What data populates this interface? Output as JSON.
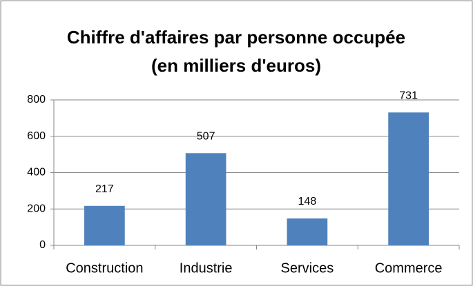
{
  "chart_data": {
    "type": "bar",
    "title": [
      "Chiffre d'affaires par personne occupée",
      "(en milliers d'euros)"
    ],
    "categories": [
      "Construction",
      "Industrie",
      "Services",
      "Commerce"
    ],
    "values": [
      217,
      507,
      148,
      731
    ],
    "color": "#4f81bd",
    "ylim": [
      0,
      800
    ],
    "yticks": [
      0,
      200,
      400,
      600,
      800
    ],
    "grid": true
  }
}
